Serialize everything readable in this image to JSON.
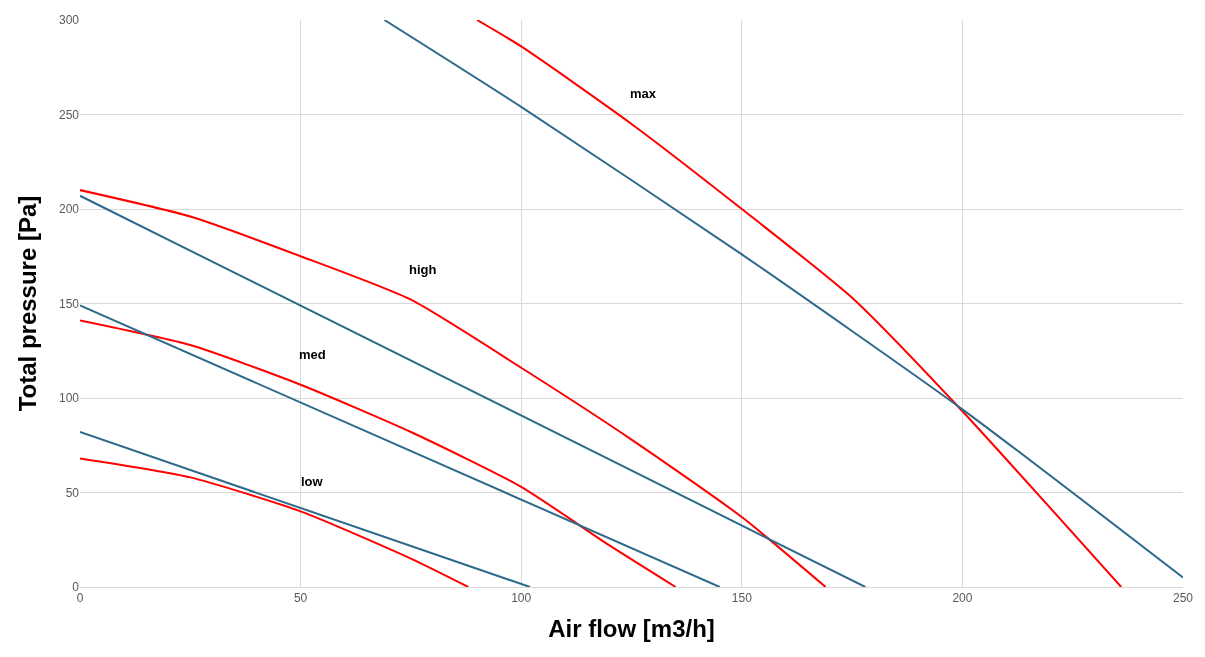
{
  "chart_data": {
    "type": "line",
    "xlabel": "Air flow [m3/h]",
    "ylabel": "Total pressure [Pa]",
    "xlim": [
      0,
      250
    ],
    "xticks": [
      0,
      50,
      100,
      150,
      200,
      250
    ],
    "ylim": [
      0,
      300
    ],
    "yticks": [
      0,
      50,
      100,
      150,
      200,
      250,
      300
    ],
    "grid": true,
    "marker": "none",
    "line_style": "solid",
    "series": [
      {
        "name": "low",
        "color": "#ff0000",
        "x": [
          0,
          25,
          50,
          75,
          88
        ],
        "values": [
          68,
          58,
          40,
          15,
          0
        ]
      },
      {
        "name": "med",
        "color": "#ff0000",
        "x": [
          0,
          25,
          50,
          75,
          100,
          120,
          135
        ],
        "values": [
          141,
          128,
          107,
          82,
          53,
          22,
          0
        ]
      },
      {
        "name": "high",
        "color": "#ff0000",
        "x": [
          0,
          25,
          50,
          75,
          100,
          125,
          150,
          169
        ],
        "values": [
          210,
          196,
          175,
          152,
          116,
          78,
          37,
          0
        ]
      },
      {
        "name": "max",
        "color": "#ff0000",
        "x": [
          90,
          100,
          125,
          150,
          175,
          200,
          236
        ],
        "values": [
          300,
          286,
          245,
          200,
          153,
          93,
          0
        ]
      },
      {
        "color": "#2e6a8c",
        "x": [
          0,
          102
        ],
        "values": [
          82,
          0
        ]
      },
      {
        "color": "#2e6a8c",
        "x": [
          0,
          145
        ],
        "values": [
          149,
          0
        ]
      },
      {
        "color": "#2e6a8c",
        "x": [
          0,
          178
        ],
        "values": [
          207,
          0
        ]
      },
      {
        "color": "#2e6a8c",
        "x": [
          69,
          100,
          150,
          200,
          250
        ],
        "values": [
          300,
          254,
          176,
          94,
          5
        ]
      }
    ]
  }
}
